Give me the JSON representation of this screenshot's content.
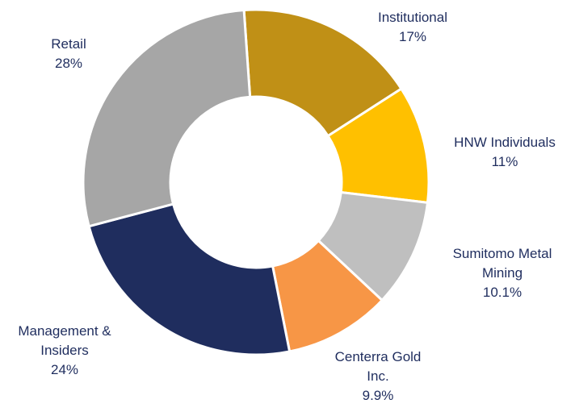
{
  "chart_data": {
    "type": "donut",
    "categories": [
      "Institutional",
      "HNW Individuals",
      "Sumitomo Metal Mining",
      "Centerra Gold Inc.",
      "Management & Insiders",
      "Retail"
    ],
    "values": [
      17,
      11,
      10.1,
      9.9,
      24,
      28
    ],
    "value_labels": [
      "17%",
      "11%",
      "10.1%",
      "9.9%",
      "24%",
      "28%"
    ],
    "colors": [
      "#c09016",
      "#ffc000",
      "#bfbfbf",
      "#f79646",
      "#1f2d5e",
      "#a6a6a6"
    ]
  }
}
